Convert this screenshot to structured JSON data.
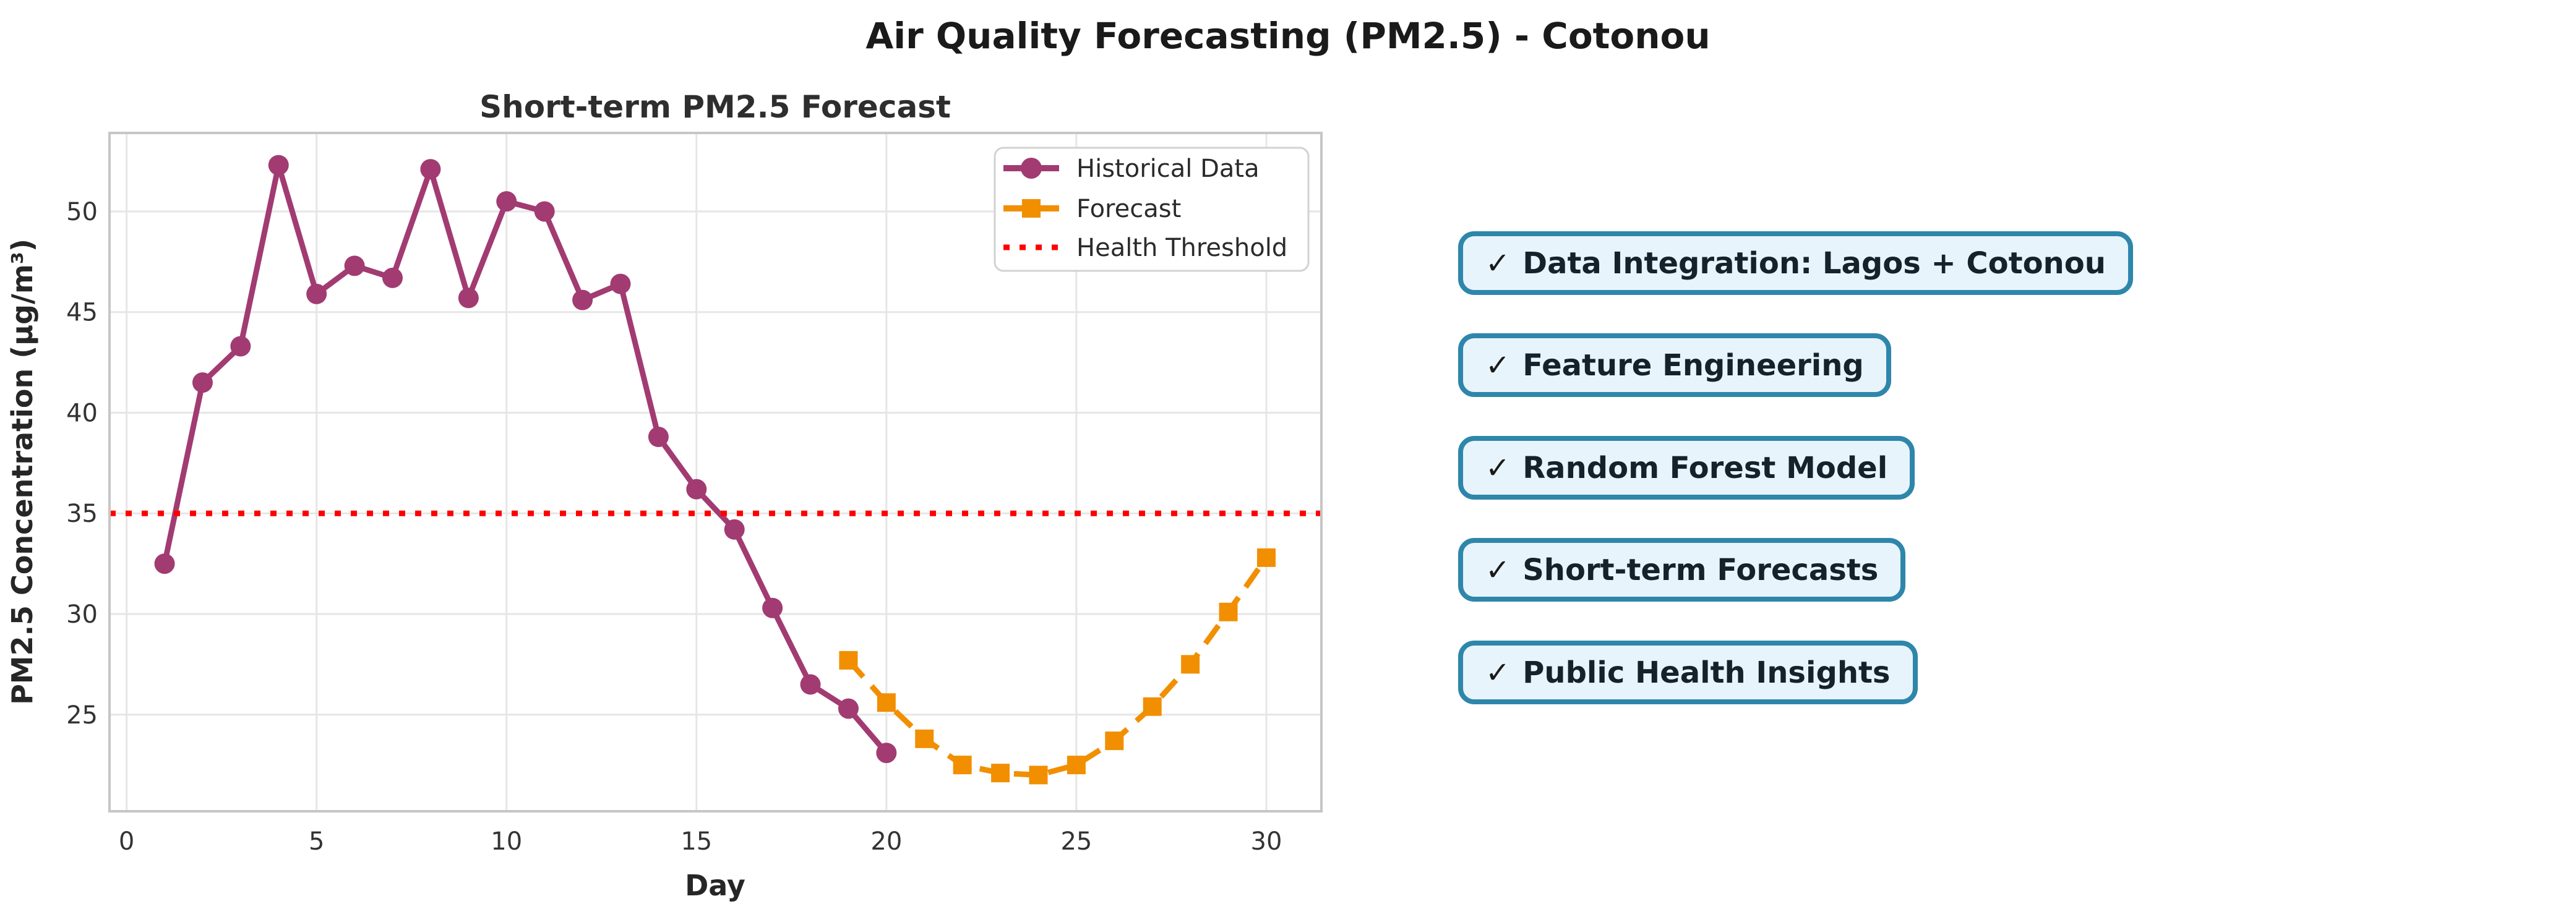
{
  "figure_title": "Air Quality Forecasting (PM2.5) - Cotonou",
  "chart_data": {
    "type": "line",
    "title": "Short-term PM2.5 Forecast",
    "xlabel": "Day",
    "ylabel": "PM2.5 Concentration (µg/m³)",
    "xlim": [
      -0.45,
      31.45
    ],
    "ylim": [
      20.2,
      53.9
    ],
    "x_ticks": [
      0,
      5,
      10,
      15,
      20,
      25,
      30
    ],
    "y_ticks": [
      25,
      30,
      35,
      40,
      45,
      50
    ],
    "grid": true,
    "legend_position": "upper right",
    "series": [
      {
        "name": "Historical Data",
        "type": "line",
        "color": "#A23B72",
        "marker": "circle",
        "linestyle": "solid",
        "x": [
          1,
          2,
          3,
          4,
          5,
          6,
          7,
          8,
          9,
          10,
          11,
          12,
          13,
          14,
          15,
          16,
          17,
          18,
          19,
          20
        ],
        "values": [
          32.5,
          41.5,
          43.3,
          52.3,
          45.9,
          47.3,
          46.7,
          52.1,
          45.7,
          50.5,
          50.0,
          45.6,
          46.4,
          38.8,
          36.2,
          34.2,
          30.3,
          26.5,
          25.3,
          23.1
        ]
      },
      {
        "name": "Forecast",
        "type": "line",
        "color": "#F18F01",
        "marker": "square",
        "linestyle": "dashed",
        "x": [
          19,
          20,
          21,
          22,
          23,
          24,
          25,
          26,
          27,
          28,
          29,
          30
        ],
        "values": [
          27.7,
          25.6,
          23.8,
          22.5,
          22.1,
          22.0,
          22.5,
          23.7,
          25.4,
          27.5,
          30.1,
          32.8
        ]
      },
      {
        "name": "Health Threshold",
        "type": "hline",
        "color": "#FF0000",
        "linestyle": "dotted",
        "value": 35
      }
    ],
    "grid_color": "#e6e6e6",
    "spine_color": "#c6c6c6"
  },
  "badges": {
    "check": "✓",
    "items": [
      "Data Integration: Lagos + Cotonou",
      "Feature Engineering",
      "Random Forest Model",
      "Short-term Forecasts",
      "Public Health Insights"
    ]
  },
  "colors": {
    "badge_fill": "#e8f4fb",
    "badge_border": "#2e86ab",
    "historical": "#A23B72",
    "forecast": "#F18F01",
    "threshold": "#FF0000"
  }
}
